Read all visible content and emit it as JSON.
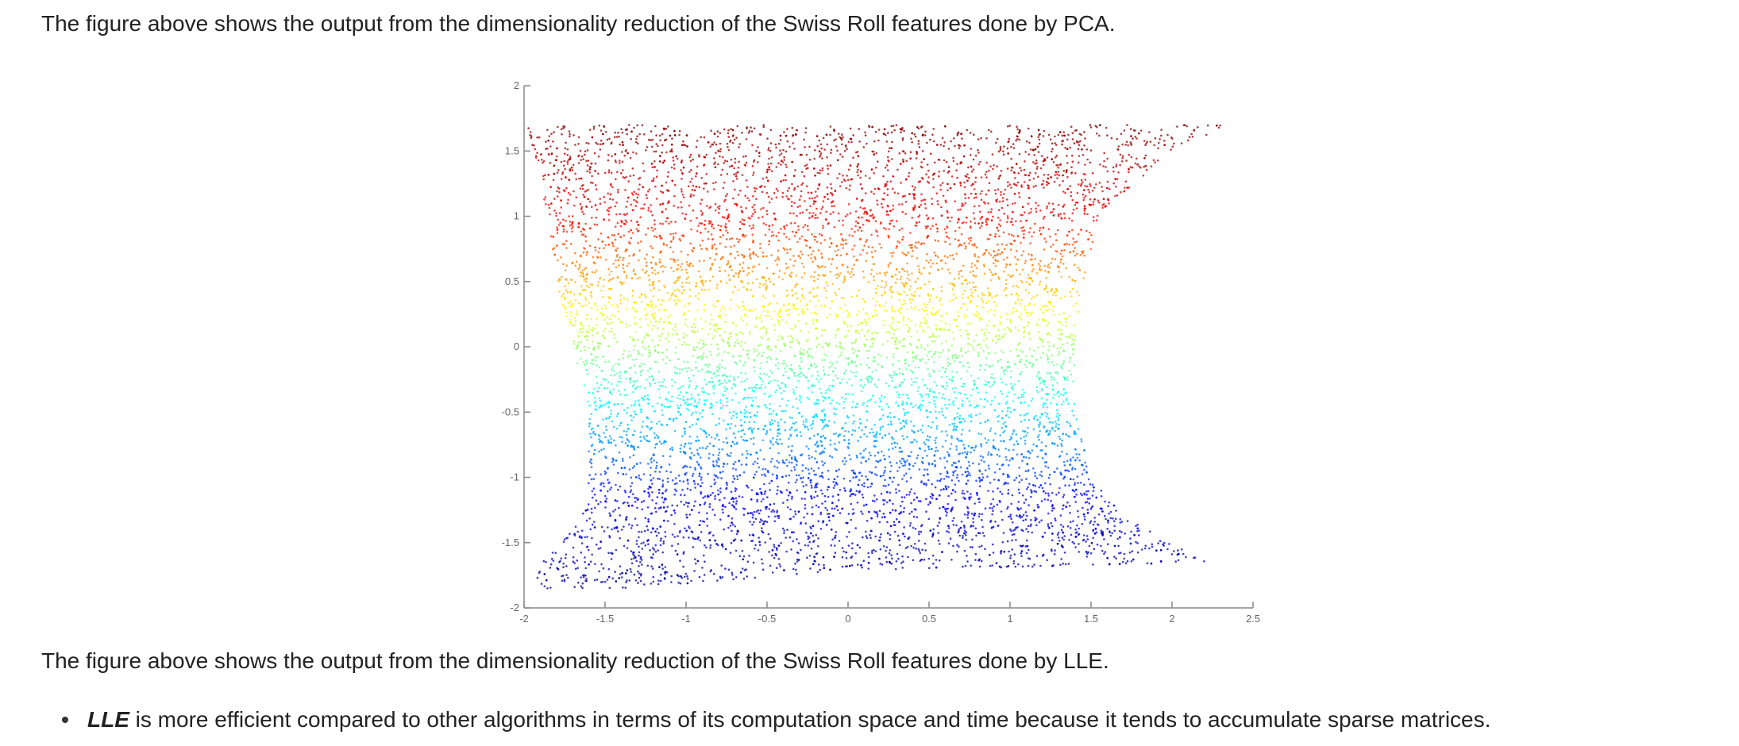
{
  "text": {
    "pca_caption": "The figure above shows the output from the dimensionality reduction of the Swiss Roll features done by PCA.",
    "lle_caption": "The figure above shows the output from the dimensionality reduction of the Swiss Roll features done by LLE.",
    "bullets": [
      {
        "term": "LLE",
        "text": " is more efficient compared to other algorithms in terms of its computation space and time because it tends to accumulate sparse matrices."
      }
    ]
  },
  "chart_data": {
    "type": "scatter",
    "title": "",
    "xlabel": "",
    "ylabel": "",
    "xlim": [
      -2,
      2.5
    ],
    "ylim": [
      -2,
      2
    ],
    "x_ticks": [
      "-2",
      "-1.5",
      "-1",
      "-0.5",
      "0",
      "0.5",
      "1",
      "1.5",
      "2",
      "2.5"
    ],
    "y_ticks": [
      "2",
      "1.5",
      "1",
      "0.5",
      "0",
      "-0.5",
      "-1",
      "-1.5",
      "-2"
    ],
    "grid": false,
    "legend": "none",
    "colormap": "jet",
    "colormap_stops": [
      "#00008f",
      "#0000ff",
      "#00ffff",
      "#ffff00",
      "#ff0000",
      "#800000"
    ],
    "point_color": "by y-value",
    "approx_point_count": 9000,
    "cloud_outline": {
      "description": "left and right x-extent of the point cloud at each y level (data units)",
      "rows": [
        {
          "y": 1.7,
          "x_left": -2.0,
          "x_right": 2.35
        },
        {
          "y": 1.5,
          "x_left": -1.95,
          "x_right": 2.0
        },
        {
          "y": 1.0,
          "x_left": -1.85,
          "x_right": 1.55
        },
        {
          "y": 0.5,
          "x_left": -1.8,
          "x_right": 1.45
        },
        {
          "y": 0.0,
          "x_left": -1.7,
          "x_right": 1.4
        },
        {
          "y": -0.5,
          "x_left": -1.6,
          "x_right": 1.4
        },
        {
          "y": -1.0,
          "x_left": -1.6,
          "x_right": 1.5
        },
        {
          "y": -1.3,
          "x_left": -1.65,
          "x_right": 1.7
        },
        {
          "y": -1.55,
          "x_left": -1.8,
          "x_right": 2.1
        },
        {
          "y": -1.65,
          "x_left": -1.9,
          "x_right": 2.25
        },
        {
          "y": -1.85,
          "x_left": -1.95,
          "x_right": 0.0
        }
      ],
      "bottom_edge": [
        {
          "x": -1.95,
          "y": -1.9
        },
        {
          "x": 0.0,
          "y": -1.72
        },
        {
          "x": 2.25,
          "y": -1.65
        }
      ]
    }
  }
}
